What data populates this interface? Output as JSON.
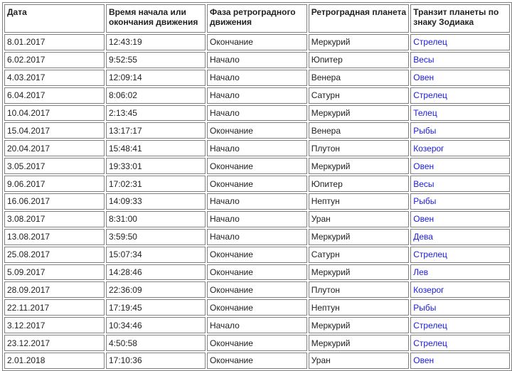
{
  "table": {
    "headers": [
      "Дата",
      "Время начала или окончания движения",
      "Фаза ретроградного движения",
      "Ретроградная планета",
      "Транзит планеты по знаку Зодиака"
    ],
    "link_color": "#1a1adf",
    "rows": [
      [
        "8.01.2017",
        "12:43:19",
        "Окончание",
        "Меркурий",
        "Стрелец"
      ],
      [
        "6.02.2017",
        "9:52:55",
        "Начало",
        "Юпитер",
        "Весы"
      ],
      [
        "4.03.2017",
        "12:09:14",
        "Начало",
        "Венера",
        "Овен"
      ],
      [
        "6.04.2017",
        "8:06:02",
        "Начало",
        "Сатурн",
        "Стрелец"
      ],
      [
        "10.04.2017",
        "2:13:45",
        "Начало",
        "Меркурий",
        "Телец"
      ],
      [
        "15.04.2017",
        "13:17:17",
        "Окончание",
        "Венера",
        "Рыбы"
      ],
      [
        "20.04.2017",
        "15:48:41",
        "Начало",
        "Плутон",
        "Козерог"
      ],
      [
        "3.05.2017",
        "19:33:01",
        "Окончание",
        "Меркурий",
        "Овен"
      ],
      [
        "9.06.2017",
        "17:02:31",
        "Окончание",
        "Юпитер",
        "Весы"
      ],
      [
        "16.06.2017",
        "14:09:33",
        "Начало",
        "Нептун",
        "Рыбы"
      ],
      [
        "3.08.2017",
        "8:31:00",
        "Начало",
        "Уран",
        "Овен"
      ],
      [
        "13.08.2017",
        "3:59:50",
        "Начало",
        "Меркурий",
        "Дева"
      ],
      [
        "25.08.2017",
        "15:07:34",
        "Окончание",
        "Сатурн",
        "Стрелец"
      ],
      [
        "5.09.2017",
        "14:28:46",
        "Окончание",
        "Меркурий",
        "Лев"
      ],
      [
        "28.09.2017",
        "22:36:09",
        "Окончание",
        "Плутон",
        "Козерог"
      ],
      [
        "22.11.2017",
        "17:19:45",
        "Окончание",
        "Нептун",
        "Рыбы"
      ],
      [
        "3.12.2017",
        "10:34:46",
        "Начало",
        "Меркурий",
        "Стрелец"
      ],
      [
        "23.12.2017",
        "4:50:58",
        "Окончание",
        "Меркурий",
        "Стрелец"
      ],
      [
        "2.01.2018",
        "17:10:36",
        "Окончание",
        "Уран",
        "Овен"
      ]
    ]
  }
}
